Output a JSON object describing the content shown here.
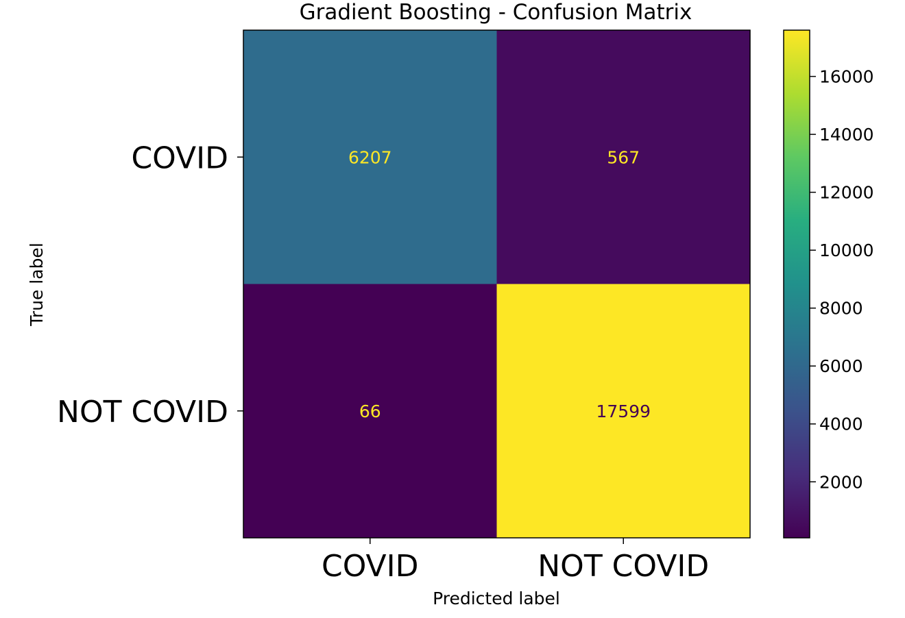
{
  "chart_data": {
    "type": "heatmap",
    "title": "Gradient Boosting - Confusion Matrix",
    "xlabel": "Predicted label",
    "ylabel": "True label",
    "x_categories": [
      "COVID",
      "NOT COVID"
    ],
    "y_categories": [
      "COVID",
      "NOT COVID"
    ],
    "values": [
      [
        6207,
        567
      ],
      [
        66,
        17599
      ]
    ],
    "colormap": "viridis",
    "colorbar": {
      "min": 66,
      "max": 17599,
      "ticks": [
        2000,
        4000,
        6000,
        8000,
        10000,
        12000,
        14000,
        16000
      ]
    },
    "grid": false,
    "legend": "colorbar-right"
  }
}
